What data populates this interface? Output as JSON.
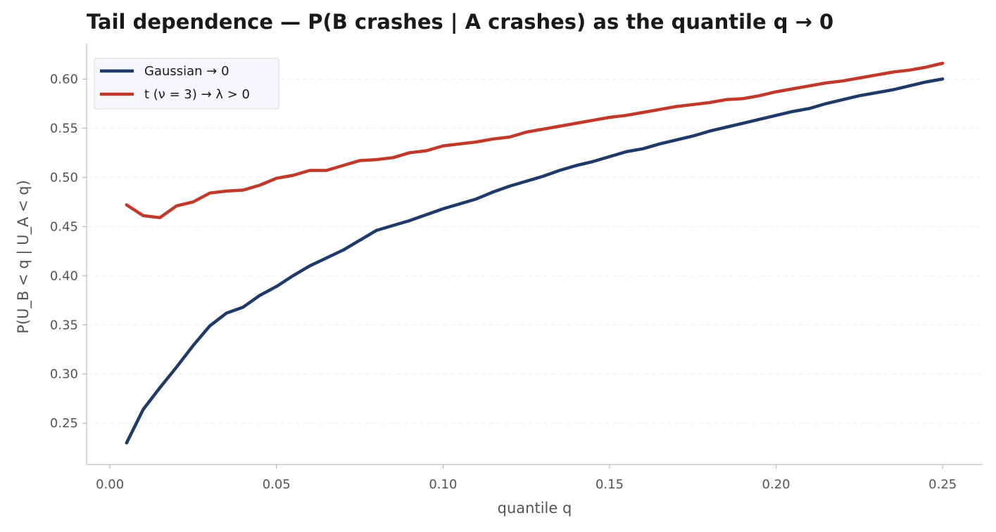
{
  "chart_data": {
    "type": "line",
    "title": "Tail dependence — P(B crashes | A crashes) as the quantile q → 0",
    "xlabel": "quantile q",
    "ylabel": "P(U_B < q | U_A < q)",
    "xlim": [
      -0.007,
      0.262
    ],
    "ylim": [
      0.208,
      0.636
    ],
    "xticks": [
      0.0,
      0.05,
      0.1,
      0.15,
      0.2,
      0.25
    ],
    "xtick_labels": [
      "0.00",
      "0.05",
      "0.10",
      "0.15",
      "0.20",
      "0.25"
    ],
    "yticks": [
      0.25,
      0.3,
      0.35,
      0.4,
      0.45,
      0.5,
      0.55,
      0.6
    ],
    "ytick_labels": [
      "0.25",
      "0.30",
      "0.35",
      "0.40",
      "0.45",
      "0.50",
      "0.55",
      "0.60"
    ],
    "grid": "horizontal dashed",
    "legend_position": "top-left",
    "x": [
      0.005,
      0.01,
      0.015,
      0.02,
      0.025,
      0.03,
      0.035,
      0.04,
      0.045,
      0.05,
      0.055,
      0.06,
      0.065,
      0.07,
      0.075,
      0.08,
      0.085,
      0.09,
      0.095,
      0.1,
      0.105,
      0.11,
      0.115,
      0.12,
      0.125,
      0.13,
      0.135,
      0.14,
      0.145,
      0.15,
      0.155,
      0.16,
      0.165,
      0.17,
      0.175,
      0.18,
      0.185,
      0.19,
      0.195,
      0.2,
      0.205,
      0.21,
      0.215,
      0.22,
      0.225,
      0.23,
      0.235,
      0.24,
      0.245,
      0.25
    ],
    "series": [
      {
        "name": "Gaussian → 0",
        "color": "#1f3a68",
        "values": [
          0.23,
          0.264,
          0.286,
          0.307,
          0.329,
          0.349,
          0.362,
          0.368,
          0.38,
          0.389,
          0.4,
          0.41,
          0.418,
          0.426,
          0.436,
          0.446,
          0.451,
          0.456,
          0.462,
          0.468,
          0.473,
          0.478,
          0.485,
          0.491,
          0.496,
          0.501,
          0.507,
          0.512,
          0.516,
          0.521,
          0.526,
          0.529,
          0.534,
          0.538,
          0.542,
          0.547,
          0.551,
          0.555,
          0.559,
          0.563,
          0.567,
          0.57,
          0.575,
          0.579,
          0.583,
          0.586,
          0.589,
          0.593,
          0.597,
          0.6
        ]
      },
      {
        "name": "t (ν = 3) → λ > 0",
        "color": "#c0392b",
        "values": [
          0.472,
          0.461,
          0.459,
          0.471,
          0.475,
          0.484,
          0.486,
          0.487,
          0.492,
          0.499,
          0.502,
          0.507,
          0.507,
          0.512,
          0.517,
          0.518,
          0.52,
          0.525,
          0.527,
          0.532,
          0.534,
          0.536,
          0.539,
          0.541,
          0.546,
          0.549,
          0.552,
          0.555,
          0.558,
          0.561,
          0.563,
          0.566,
          0.569,
          0.572,
          0.574,
          0.576,
          0.579,
          0.58,
          0.583,
          0.587,
          0.59,
          0.593,
          0.596,
          0.598,
          0.601,
          0.604,
          0.607,
          0.609,
          0.612,
          0.616
        ]
      }
    ]
  }
}
